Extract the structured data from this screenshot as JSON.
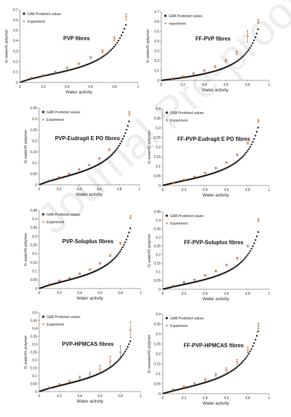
{
  "watermark": "Journal Pre-proof",
  "colors": {
    "model": "#111111",
    "experiment": "#e07b39",
    "axis": "#7f7f7f",
    "text": "#222222"
  },
  "chart_data": [
    {
      "type": "scatter",
      "title": "PVP fibres",
      "xlabel": "Water activity",
      "ylabel": "G water/G polymer",
      "xlim": [
        0,
        1
      ],
      "ylim": [
        0,
        0.7
      ],
      "xticks": [
        "0",
        "0.2",
        "0.4",
        "0.6",
        "0.8",
        "1"
      ],
      "yticks": [
        "0",
        "0.1",
        "0.2",
        "0.3",
        "0.4",
        "0.5",
        "0.6",
        "0.7"
      ],
      "legend": [
        "GAB Predicted values",
        "Experiment"
      ],
      "gab": {
        "wm": 0.095,
        "c": 5.0,
        "k": 0.93
      },
      "experiment": {
        "x": [
          0.1,
          0.2,
          0.3,
          0.4,
          0.5,
          0.6,
          0.7,
          0.8,
          0.9
        ],
        "y": [
          0.045,
          0.07,
          0.1,
          0.14,
          0.18,
          0.24,
          0.3,
          0.42,
          0.63
        ],
        "err": [
          0.005,
          0.005,
          0.008,
          0.008,
          0.01,
          0.01,
          0.015,
          0.02,
          0.03
        ]
      }
    },
    {
      "type": "scatter",
      "title": "FF-PVP fibres",
      "xlabel": "Water activity",
      "ylabel": "G water/G polymer",
      "xlim": [
        0,
        1
      ],
      "ylim": [
        0,
        0.7
      ],
      "xticks": [
        "0",
        "0.2",
        "0.4",
        "0.6",
        "0.8",
        "1"
      ],
      "yticks": [
        "0",
        "0.1",
        "0.2",
        "0.3",
        "0.4",
        "0.5",
        "0.6",
        "0.7"
      ],
      "legend": [
        "GAB Predicted values",
        "experiment"
      ],
      "gab": {
        "wm": 0.085,
        "c": 1.6,
        "k": 0.95
      },
      "experiment": {
        "x": [
          0.1,
          0.2,
          0.3,
          0.4,
          0.5,
          0.6,
          0.7,
          0.8,
          0.9
        ],
        "y": [
          0.02,
          0.04,
          0.07,
          0.1,
          0.14,
          0.2,
          0.28,
          0.45,
          0.6
        ],
        "err": [
          0.005,
          0.005,
          0.008,
          0.008,
          0.01,
          0.015,
          0.02,
          0.06,
          0.02
        ]
      }
    },
    {
      "type": "scatter",
      "title": "PVP-Eudragit E PO fibres",
      "xlabel": "Water activity",
      "ylabel": "G water/G polymer",
      "xlim": [
        0,
        1
      ],
      "ylim": [
        0,
        0.35
      ],
      "xticks": [
        "0",
        "0.2",
        "0.4",
        "0.6",
        "0.8",
        "1"
      ],
      "yticks": [
        "0",
        "0.05",
        "0.1",
        "0.15",
        "0.2",
        "0.25",
        "0.3",
        "0.35"
      ],
      "legend": [
        "GAB Predicted values",
        "Experiment"
      ],
      "gab": {
        "wm": 0.05,
        "c": 4.0,
        "k": 0.93
      },
      "experiment": {
        "x": [
          0.1,
          0.2,
          0.3,
          0.4,
          0.5,
          0.6,
          0.7,
          0.8,
          0.9
        ],
        "y": [
          0.02,
          0.035,
          0.05,
          0.07,
          0.09,
          0.12,
          0.16,
          0.21,
          0.325
        ],
        "err": [
          0.002,
          0.002,
          0.003,
          0.003,
          0.004,
          0.004,
          0.005,
          0.006,
          0.008
        ]
      }
    },
    {
      "type": "scatter",
      "title": "FF-PVP-Eudragit E PO fibres",
      "xlabel": "Water activity",
      "ylabel": "G water/G polymer",
      "xlim": [
        0,
        1
      ],
      "ylim": [
        0,
        0.4
      ],
      "xticks": [
        "0",
        "0.2",
        "0.4",
        "0.6",
        "0.8",
        "1"
      ],
      "yticks": [
        "0",
        "0.05",
        "0.1",
        "0.15",
        "0.2",
        "0.25",
        "0.3",
        "0.35",
        "0.4"
      ],
      "legend": [
        "GAB Predicted values",
        "Experiment"
      ],
      "gab": {
        "wm": 0.05,
        "c": 3.0,
        "k": 0.94
      },
      "experiment": {
        "x": [
          0.1,
          0.2,
          0.3,
          0.4,
          0.5,
          0.6,
          0.7,
          0.8,
          0.9
        ],
        "y": [
          0.015,
          0.03,
          0.045,
          0.065,
          0.09,
          0.12,
          0.16,
          0.22,
          0.335
        ],
        "err": [
          0.002,
          0.002,
          0.003,
          0.003,
          0.004,
          0.004,
          0.005,
          0.006,
          0.008
        ]
      }
    },
    {
      "type": "scatter",
      "title": "PVP-Soluplus fibres",
      "xlabel": "Water activity",
      "ylabel": "G water/G polymer",
      "xlim": [
        0,
        1
      ],
      "ylim": [
        0,
        0.45
      ],
      "xticks": [
        "0",
        "0.2",
        "0.4",
        "0.6",
        "0.8",
        "1"
      ],
      "yticks": [
        "0",
        "0.05",
        "0.1",
        "0.15",
        "0.2",
        "0.25",
        "0.3",
        "0.35",
        "0.4",
        "0.45"
      ],
      "legend": [
        "GAB Predicted values",
        "Experiment"
      ],
      "gab": {
        "wm": 0.06,
        "c": 4.0,
        "k": 0.93
      },
      "experiment": {
        "x": [
          0.1,
          0.2,
          0.3,
          0.4,
          0.5,
          0.6,
          0.7,
          0.8,
          0.9
        ],
        "y": [
          0.025,
          0.045,
          0.06,
          0.085,
          0.11,
          0.145,
          0.19,
          0.26,
          0.41
        ],
        "err": [
          0.002,
          0.003,
          0.003,
          0.004,
          0.004,
          0.005,
          0.006,
          0.007,
          0.01
        ]
      }
    },
    {
      "type": "scatter",
      "title": "FF-PVP-Soluplus fibres",
      "xlabel": "Water activity",
      "ylabel": "G water/G polymer",
      "xlim": [
        0,
        1
      ],
      "ylim": [
        0,
        0.45
      ],
      "xticks": [
        "0",
        "0.2",
        "0.4",
        "0.6",
        "0.8",
        "1"
      ],
      "yticks": [
        "0",
        "0.05",
        "0.1",
        "0.15",
        "0.2",
        "0.25",
        "0.3",
        "0.35",
        "0.4",
        "0.45"
      ],
      "legend": [
        "GAB Predicted values",
        "Experiment"
      ],
      "gab": {
        "wm": 0.055,
        "c": 3.0,
        "k": 0.94
      },
      "experiment": {
        "x": [
          0.1,
          0.2,
          0.3,
          0.4,
          0.5,
          0.6,
          0.7,
          0.8,
          0.9
        ],
        "y": [
          0.02,
          0.04,
          0.055,
          0.08,
          0.105,
          0.14,
          0.18,
          0.25,
          0.4
        ],
        "err": [
          0.002,
          0.003,
          0.003,
          0.004,
          0.004,
          0.005,
          0.006,
          0.007,
          0.01
        ]
      }
    },
    {
      "type": "scatter",
      "title": "PVP-HPMCAS fibres",
      "xlabel": "Water activity",
      "ylabel": "G water/G polymer",
      "xlim": [
        0,
        1
      ],
      "ylim": [
        0,
        0.5
      ],
      "xticks": [
        "0",
        "0.2",
        "0.4",
        "0.6",
        "0.8",
        "1"
      ],
      "yticks": [
        "0",
        "0.05",
        "0.1",
        "0.15",
        "0.2",
        "0.25",
        "0.3",
        "0.35",
        "0.4",
        "0.45",
        "0.5"
      ],
      "legend": [
        "GAB Predicted values",
        "Experiment"
      ],
      "gab": {
        "wm": 0.065,
        "c": 4.0,
        "k": 0.9
      },
      "experiment": {
        "x": [
          0.1,
          0.2,
          0.3,
          0.4,
          0.5,
          0.6,
          0.7,
          0.8,
          0.9
        ],
        "y": [
          0.025,
          0.045,
          0.065,
          0.09,
          0.11,
          0.14,
          0.19,
          0.25,
          0.39
        ],
        "err": [
          0.004,
          0.005,
          0.006,
          0.008,
          0.015,
          0.025,
          0.035,
          0.04,
          0.05
        ]
      }
    },
    {
      "type": "scatter",
      "title": "FF-PVP-HPMCAS fibres",
      "xlabel": "Water activity",
      "ylabel": "G wewater/G polymer",
      "xlim": [
        0,
        1
      ],
      "ylim": [
        0,
        0.4
      ],
      "xticks": [
        "0",
        "0.2",
        "0.4",
        "0.6",
        "0.8",
        "1"
      ],
      "yticks": [
        "0",
        "0.05",
        "0.1",
        "0.15",
        "0.2",
        "0.25",
        "0.3",
        "0.35",
        "0.4"
      ],
      "legend": [
        "GAB Predicted values",
        "Experiment"
      ],
      "gab": {
        "wm": 0.055,
        "c": 3.0,
        "k": 0.93
      },
      "experiment": {
        "x": [
          0.1,
          0.2,
          0.3,
          0.4,
          0.5,
          0.6,
          0.7,
          0.8,
          0.9
        ],
        "y": [
          0.02,
          0.035,
          0.05,
          0.07,
          0.095,
          0.12,
          0.16,
          0.22,
          0.34
        ],
        "err": [
          0.003,
          0.004,
          0.005,
          0.006,
          0.008,
          0.01,
          0.012,
          0.014,
          0.015
        ]
      }
    }
  ]
}
